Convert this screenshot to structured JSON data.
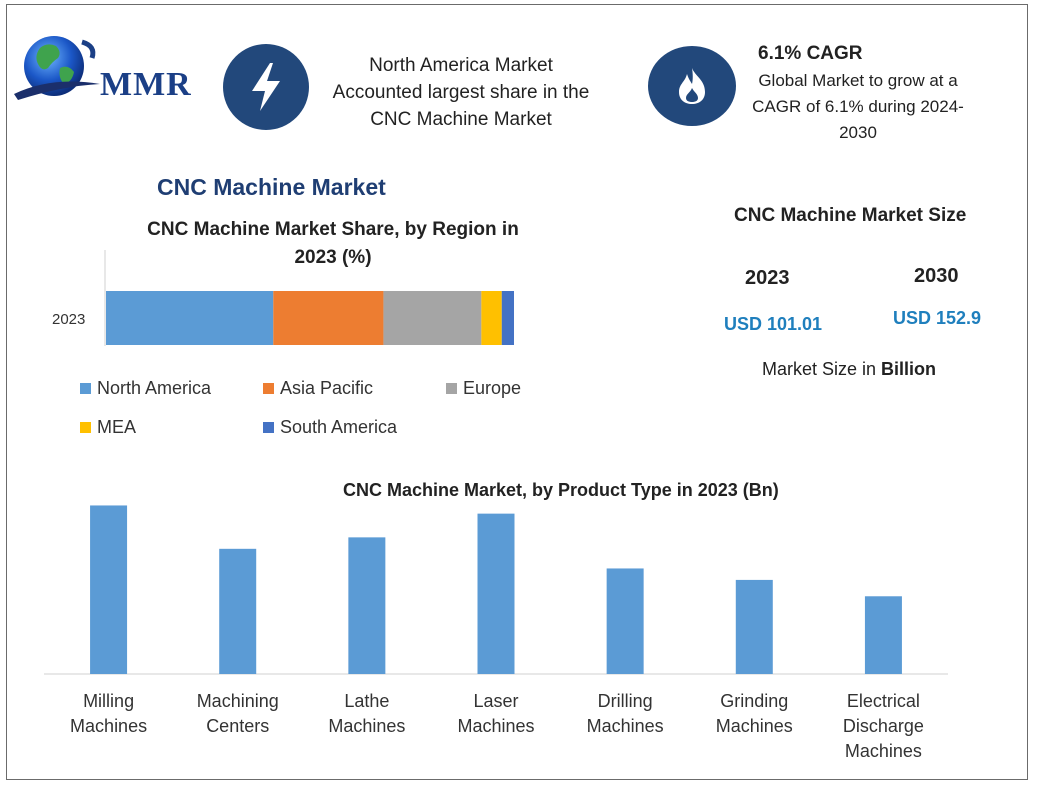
{
  "logo": {
    "text": "MMR"
  },
  "header": {
    "highlight1": {
      "icon": "lightning-icon",
      "lines": [
        "North America Market",
        "Accounted largest share in the",
        "CNC Machine Market"
      ]
    },
    "highlight2": {
      "icon": "flame-icon",
      "title": "6.1% CAGR",
      "lines": [
        "Global Market to grow at a",
        "CAGR of 6.1% during 2024-",
        "2030"
      ]
    }
  },
  "main_title": "CNC Machine Market",
  "market_size": {
    "title": "CNC Machine Market Size",
    "years": [
      "2023",
      "2030"
    ],
    "values": [
      "USD 101.01",
      "USD 152.9"
    ],
    "note_prefix": "Market Size in ",
    "note_bold": "Billion"
  },
  "colors": {
    "north_america": "#5b9bd5",
    "asia_pacific": "#ed7d31",
    "europe": "#a5a5a5",
    "mea": "#ffc000",
    "south_america": "#4472c4",
    "icon_bg": "#22487b",
    "bar_blue": "#5b9bd5",
    "accent_text": "#1f7fbd"
  },
  "chart_data": [
    {
      "type": "bar",
      "orientation": "horizontal-stacked",
      "title": "CNC Machine Market Share, by Region in 2023 (%)",
      "title_lines": [
        "CNC Machine Market Share, by Region in",
        "2023 (%)"
      ],
      "categories": [
        "2023"
      ],
      "series": [
        {
          "name": "North America",
          "values": [
            41
          ]
        },
        {
          "name": "Asia Pacific",
          "values": [
            27
          ]
        },
        {
          "name": "Europe",
          "values": [
            24
          ]
        },
        {
          "name": "MEA",
          "values": [
            5
          ]
        },
        {
          "name": "South America",
          "values": [
            3
          ]
        }
      ],
      "xlim": [
        0,
        100
      ],
      "grid": false,
      "legend": "bottom"
    },
    {
      "type": "bar",
      "title": "CNC Machine Market, by Product Type in 2023 (Bn)",
      "categories": [
        "Milling Machines",
        "Machining Centers",
        "Lathe Machines",
        "Laser Machines",
        "Drilling Machines",
        "Grinding Machines",
        "Electrical Discharge Machines"
      ],
      "category_lines": [
        [
          "Milling",
          "Machines"
        ],
        [
          "Machining",
          "Centers"
        ],
        [
          "Lathe",
          "Machines"
        ],
        [
          "Laser",
          "Machines"
        ],
        [
          "Drilling",
          "Machines"
        ],
        [
          "Grinding",
          "Machines"
        ],
        [
          "Electrical",
          "Discharge",
          "Machines"
        ]
      ],
      "values": [
        20.6,
        15.3,
        16.7,
        19.6,
        12.9,
        11.5,
        9.5
      ],
      "ylim": [
        0,
        22
      ],
      "grid": false,
      "legend": "none"
    }
  ]
}
